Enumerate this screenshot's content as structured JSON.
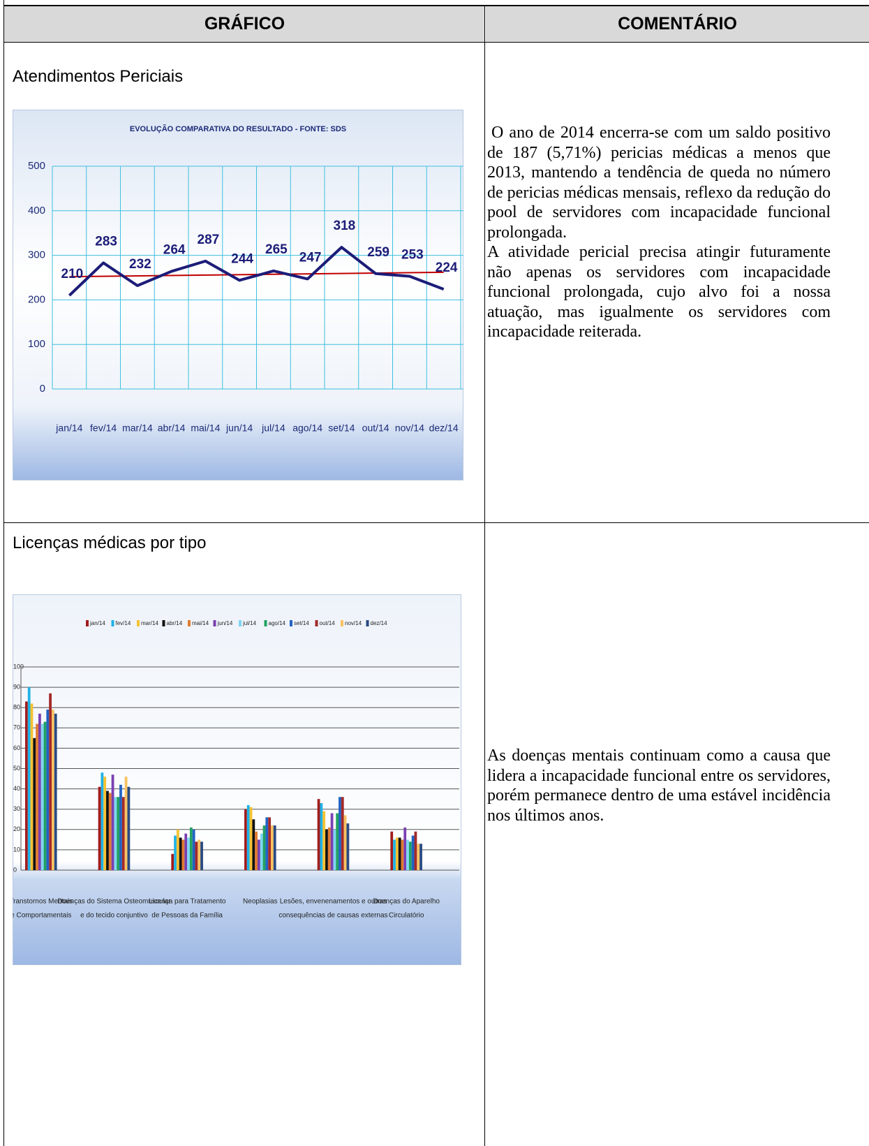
{
  "table": {
    "headers": [
      "GRÁFICO",
      "COMENTÁRIO"
    ],
    "rows": [
      {
        "title": "Atendimentos Periciais",
        "chart_data": {
          "type": "line",
          "title": "EVOLUÇÃO COMPARATIVA DO RESULTADO - FONTE: SDS",
          "categories": [
            "jan/14",
            "fev/14",
            "mar/14",
            "abr/14",
            "mai/14",
            "jun/14",
            "jul/14",
            "ago/14",
            "set/14",
            "out/14",
            "nov/14",
            "dez/14"
          ],
          "values": [
            210,
            283,
            232,
            264,
            287,
            244,
            265,
            247,
            318,
            259,
            253,
            224
          ],
          "color": "#1c1c78",
          "trend": [
            252,
            262
          ],
          "trend_color": "#c00000",
          "ylim": [
            0,
            500
          ],
          "yticks": [
            0,
            100,
            200,
            300,
            400,
            500
          ],
          "grid": true
        },
        "comment": [
          "O ano de 2014 encerra-se com um saldo positivo de 187 (5,71%) pericias médicas a menos que 2013, mantendo a tendência de queda no número de pericias médicas mensais, reflexo da redução do pool de servidores com incapacidade funcional prolongada.",
          "A atividade pericial precisa atingir futuramente não apenas os servidores com incapacidade funcional prolongada, cujo alvo foi a nossa atuação, mas igualmente os servidores com incapacidade reiterada."
        ]
      },
      {
        "title": "Licenças médicas por tipo",
        "chart_data": {
          "type": "bar",
          "categories": [
            [
              "Transtornos Mentais",
              "e Comportamentais"
            ],
            [
              "Doenças do Sistema Osteomuscular",
              "e do tecido conjuntivo"
            ],
            [
              "Licença para Tratamento",
              "de Pessoas da Família"
            ],
            [
              "Neoplasias"
            ],
            [
              "Lesões, envenenamentos e outras",
              "consequências de causas externas"
            ],
            [
              "Doenças do Aparelho",
              "Circulatório"
            ]
          ],
          "series": [
            {
              "name": "jan/14",
              "color": "#a11d1d",
              "values": [
                83,
                41,
                8,
                30,
                35,
                19
              ]
            },
            {
              "name": "fev/14",
              "color": "#1fb2e6",
              "values": [
                90,
                48,
                17,
                32,
                33,
                15
              ]
            },
            {
              "name": "mar/14",
              "color": "#f5c232",
              "values": [
                82,
                46,
                20,
                31,
                29,
                16
              ]
            },
            {
              "name": "abr/14",
              "color": "#111111",
              "values": [
                65,
                39,
                16,
                25,
                20,
                16
              ]
            },
            {
              "name": "mai/14",
              "color": "#e07b30",
              "values": [
                72,
                38,
                15,
                19,
                21,
                15
              ]
            },
            {
              "name": "jun/14",
              "color": "#7a40b2",
              "values": [
                77,
                47,
                18,
                15,
                28,
                21
              ]
            },
            {
              "name": "jul/14",
              "color": "#80d6f2",
              "values": [
                72,
                36,
                16,
                18,
                20,
                15
              ]
            },
            {
              "name": "ago/14",
              "color": "#22a262",
              "values": [
                73,
                36,
                21,
                22,
                28,
                14
              ]
            },
            {
              "name": "set/14",
              "color": "#2262c2",
              "values": [
                79,
                42,
                20,
                26,
                36,
                17
              ]
            },
            {
              "name": "out/14",
              "color": "#a32a2a",
              "values": [
                87,
                36,
                14,
                26,
                36,
                19
              ]
            },
            {
              "name": "nov/14",
              "color": "#f8c262",
              "values": [
                79,
                46,
                15,
                22,
                27,
                13
              ]
            },
            {
              "name": "dez/14",
              "color": "#2a4a82",
              "values": [
                77,
                41,
                14,
                22,
                23,
                13
              ]
            }
          ],
          "ylim": [
            0,
            100
          ],
          "yticks": [
            0,
            10,
            20,
            30,
            40,
            50,
            60,
            70,
            80,
            90,
            100
          ],
          "grid": true
        },
        "comment": [
          "As doenças mentais continuam como a causa que lidera a incapacidade funcional entre os servidores, porém permanece dentro de uma estável incidência nos últimos anos."
        ]
      }
    ]
  }
}
